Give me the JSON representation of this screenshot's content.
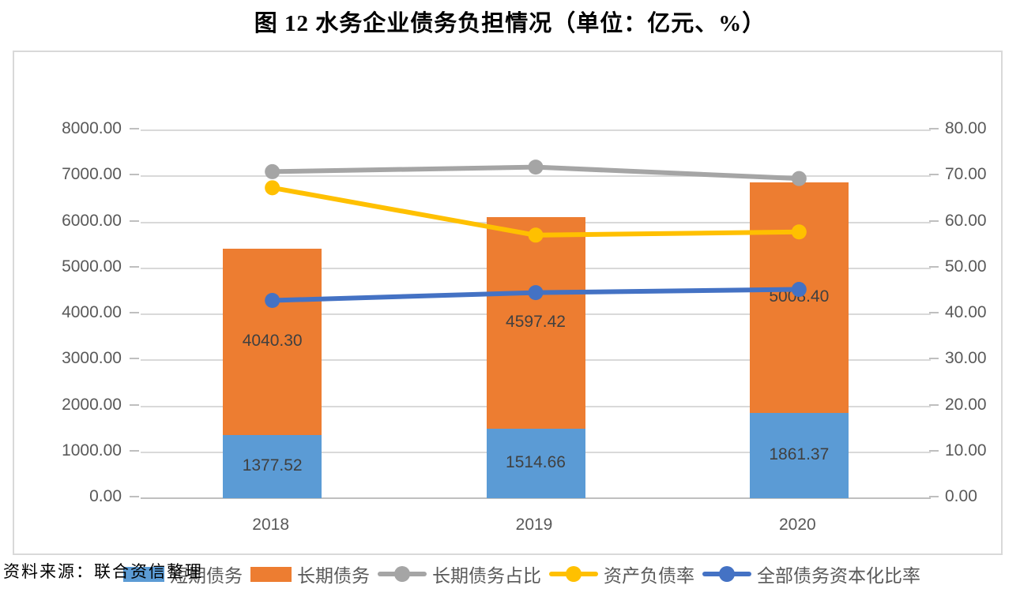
{
  "page": {
    "title": "图 12  水务企业债务负担情况（单位：亿元、%）",
    "source": "资料来源：联合资信整理"
  },
  "chart_data": {
    "type": "bar",
    "subtype": "stacked-bars-with-lines-combo",
    "title": "图 12  水务企业债务负担情况（单位：亿元、%）",
    "categories": [
      "2018",
      "2019",
      "2020"
    ],
    "bar_series": [
      {
        "name": "短期债务",
        "color": "#5B9BD5",
        "values": [
          1377.52,
          1514.66,
          1861.37
        ],
        "labels": [
          "1377.52",
          "1514.66",
          "1861.37"
        ]
      },
      {
        "name": "长期债务",
        "color": "#ED7D31",
        "values": [
          4040.3,
          4597.42,
          5008.4
        ],
        "labels": [
          "4040.30",
          "4597.42",
          "5008.40"
        ]
      }
    ],
    "line_series": [
      {
        "name": "长期债务占比",
        "color": "#A5A5A5",
        "values": [
          71.0,
          72.0,
          69.5
        ]
      },
      {
        "name": "资产负债率",
        "color": "#FFC000",
        "values": [
          67.5,
          57.2,
          57.9
        ]
      },
      {
        "name": "全部债务资本化比率",
        "color": "#4472C4",
        "values": [
          43.0,
          44.7,
          45.4
        ]
      }
    ],
    "left_axis": {
      "min": 0,
      "max": 8000,
      "step": 1000,
      "tick_labels": [
        "8000.00",
        "7000.00",
        "6000.00",
        "5000.00",
        "4000.00",
        "3000.00",
        "2000.00",
        "1000.00",
        "0.00"
      ]
    },
    "right_axis": {
      "min": 0,
      "max": 80,
      "step": 10,
      "tick_labels": [
        "80.00",
        "70.00",
        "60.00",
        "50.00",
        "40.00",
        "30.00",
        "20.00",
        "10.00",
        "0.00"
      ]
    },
    "grid": true,
    "legend_position": "bottom"
  }
}
